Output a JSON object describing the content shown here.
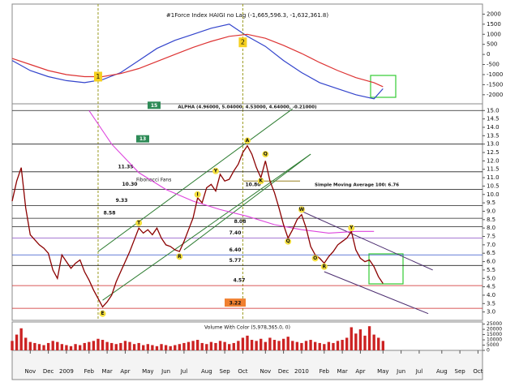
{
  "chart_data": [
    {
      "type": "line",
      "title": "#1Force Index HAIGI no Lag (-1,665,596.3, -1,632,361.8)",
      "xlim": [
        0,
        104
      ],
      "ylim": [
        -2450,
        2500
      ],
      "yticks": [
        2000,
        1500,
        1000,
        500,
        0,
        -500,
        -1000,
        -1500,
        -2000
      ],
      "series": [
        {
          "color": "#3344cc",
          "x": [
            0,
            4,
            8,
            12,
            16,
            20,
            24,
            28,
            32,
            36,
            40,
            44,
            48,
            52,
            56,
            60,
            64,
            68,
            72,
            76,
            80,
            82
          ],
          "values": [
            -300,
            -800,
            -1100,
            -1300,
            -1400,
            -1250,
            -900,
            -300,
            300,
            700,
            1000,
            1300,
            1500,
            900,
            400,
            -300,
            -900,
            -1400,
            -1700,
            -2000,
            -2200,
            -1700
          ]
        },
        {
          "color": "#dd3333",
          "x": [
            0,
            4,
            8,
            12,
            16,
            20,
            24,
            28,
            32,
            36,
            40,
            44,
            48,
            52,
            56,
            60,
            64,
            68,
            72,
            76,
            80,
            82
          ],
          "values": [
            -200,
            -500,
            -800,
            -1000,
            -1100,
            -1100,
            -950,
            -700,
            -350,
            0,
            350,
            650,
            900,
            1000,
            800,
            450,
            50,
            -400,
            -800,
            -1150,
            -1400,
            -1600
          ]
        }
      ],
      "annotations": [
        {
          "text": "1",
          "x": 19,
          "y": -1100
        },
        {
          "text": "2",
          "x": 51,
          "y": 600
        }
      ]
    },
    {
      "type": "line",
      "title": "ALPHA (4.96000, 5.04000, 4.53000, 4.64000, -0.21000)",
      "xlim": [
        0,
        104
      ],
      "ylim": [
        2.5,
        15.4
      ],
      "yticks": [
        {
          "value": 15,
          "label": "15.0"
        },
        14.5,
        {
          "value": 14,
          "label": "14.0"
        },
        13.5,
        {
          "value": 13,
          "label": "13.0"
        },
        12.5,
        {
          "value": 12,
          "label": "12.0"
        },
        11.5,
        {
          "value": 11,
          "label": "11.0"
        },
        10.5,
        {
          "value": 10,
          "label": "10.0"
        },
        9.5,
        {
          "value": 9,
          "label": "9.0"
        },
        8.5,
        {
          "value": 8,
          "label": "8.0"
        },
        7.5,
        {
          "value": 7,
          "label": "7.0"
        },
        6.5,
        {
          "value": 6,
          "label": "6.0"
        },
        5.5,
        {
          "value": 5,
          "label": "5.0"
        },
        4.5,
        {
          "value": 4,
          "label": "4.0"
        },
        3.5,
        {
          "value": 3,
          "label": "3.0"
        }
      ],
      "color": "#8b0000",
      "values": [
        9.6,
        10.8,
        11.6,
        9.2,
        7.6,
        7.3,
        7.0,
        6.8,
        6.5,
        5.5,
        5.0,
        6.4,
        6.0,
        5.6,
        5.9,
        6.1,
        5.4,
        4.9,
        4.3,
        3.8,
        3.3,
        3.6,
        4.0,
        4.8,
        5.4,
        6.0,
        6.6,
        7.3,
        8.0,
        7.7,
        7.9,
        7.6,
        8.0,
        7.4,
        7.0,
        6.9,
        6.7,
        6.6,
        7.2,
        7.9,
        8.6,
        9.8,
        9.5,
        10.4,
        10.6,
        10.2,
        11.2,
        10.8,
        10.9,
        11.4,
        11.8,
        12.5,
        12.9,
        12.4,
        11.6,
        11.0,
        12.0,
        10.8,
        10.1,
        9.2,
        8.2,
        7.4,
        7.9,
        8.5,
        8.8,
        8.0,
        6.9,
        6.4,
        6.2,
        5.9,
        6.3,
        6.6,
        7.0,
        7.2,
        7.4,
        7.8,
        6.7,
        6.2,
        6.0,
        6.1,
        5.7,
        5.1,
        4.7
      ],
      "levels": [
        {
          "value": 15,
          "label": "15",
          "color": "#222222"
        },
        {
          "value": 13,
          "label": "13",
          "color": "#222222"
        },
        {
          "value": 11.35,
          "label": "11.35",
          "color": "#222222"
        },
        {
          "value": 10.3,
          "label": "10.30",
          "color": "#333333"
        },
        {
          "value": 9.33,
          "label": "9.33",
          "color": "#222222"
        },
        {
          "value": 8.58,
          "label": "8.58",
          "color": "#222222"
        },
        {
          "value": 8.08,
          "label": "8.08",
          "color": "#222222"
        },
        {
          "value": 7.4,
          "label": "7.40",
          "color": "#9966cc"
        },
        {
          "value": 6.4,
          "label": "6.40",
          "color": "#3355cc"
        },
        {
          "value": 5.77,
          "label": "5.77",
          "color": "#222222"
        },
        {
          "value": 4.57,
          "label": "4.57",
          "color": "#cc2222"
        },
        {
          "value": 3.22,
          "label": "3.22",
          "color": "#cc2222"
        }
      ],
      "fan_label": {
        "value": 10.8,
        "label": "10.80"
      },
      "fan_title": "Fibonacci Fans",
      "sma": {
        "title": "Simple Moving Average 100: 6.76",
        "color": "#dd44dd",
        "x": [
          17,
          22,
          28,
          34,
          40,
          46,
          52,
          58,
          64,
          70,
          76,
          80
        ],
        "values": [
          15.0,
          13.0,
          11.3,
          10.3,
          9.6,
          9.1,
          8.7,
          8.2,
          7.9,
          7.7,
          7.8,
          7.8
        ]
      },
      "trendlines": [
        {
          "color": "#2e7d32",
          "x": [
            19,
            62
          ],
          "y": [
            6.6,
            15.1
          ]
        },
        {
          "color": "#2e7d32",
          "x": [
            20,
            66
          ],
          "y": [
            3.7,
            12.4
          ]
        },
        {
          "color": "#2e7d32",
          "x": [
            38,
            66
          ],
          "y": [
            6.7,
            12.4
          ]
        },
        {
          "color": "#4b2c6f",
          "x": [
            64,
            93
          ],
          "y": [
            9.0,
            5.5
          ]
        },
        {
          "color": "#4b2c6f",
          "x": [
            69,
            92
          ],
          "y": [
            5.4,
            2.9
          ]
        }
      ],
      "annotations": [
        {
          "text": "E",
          "x": 20,
          "y": 2.9
        },
        {
          "text": "T",
          "x": 28,
          "y": 8.3
        },
        {
          "text": "R",
          "x": 37,
          "y": 6.3
        },
        {
          "text": "I",
          "x": 41,
          "y": 10.0
        },
        {
          "text": "Y",
          "x": 45,
          "y": 11.4
        },
        {
          "text": "A",
          "x": 52,
          "y": 13.2
        },
        {
          "text": "K",
          "x": 55,
          "y": 10.8
        },
        {
          "text": "Q",
          "x": 56,
          "y": 12.4
        },
        {
          "text": "Q",
          "x": 61,
          "y": 7.2
        },
        {
          "text": "W",
          "x": 64,
          "y": 9.1
        },
        {
          "text": "O",
          "x": 67,
          "y": 6.2
        },
        {
          "text": "R",
          "x": 69,
          "y": 5.7
        },
        {
          "text": "Y",
          "x": 75,
          "y": 8.0
        }
      ]
    },
    {
      "type": "bar",
      "title": "Volume With Color (5,978,365.0, 0)",
      "xlim": [
        0,
        104
      ],
      "ylim": [
        0,
        27000
      ],
      "color": "#cc2222",
      "yticks": [
        25000,
        20000,
        15000,
        10000,
        5000,
        0
      ],
      "values": [
        9000,
        15000,
        21000,
        12000,
        8000,
        7000,
        6000,
        5000,
        7000,
        9000,
        8000,
        6000,
        5000,
        4000,
        6000,
        5000,
        7000,
        8000,
        9000,
        11000,
        10000,
        8000,
        7000,
        6000,
        7000,
        9000,
        8000,
        6000,
        7000,
        5000,
        6000,
        5000,
        4000,
        6000,
        5000,
        4000,
        5000,
        6000,
        7000,
        8000,
        9000,
        10000,
        7000,
        6000,
        8000,
        7000,
        9000,
        8000,
        6000,
        7000,
        9000,
        12000,
        14000,
        10000,
        9000,
        11000,
        8000,
        12000,
        10000,
        9000,
        11000,
        13000,
        9000,
        8000,
        7000,
        9000,
        10000,
        8000,
        7000,
        6000,
        8000,
        7000,
        9000,
        10000,
        12000,
        22000,
        16000,
        20000,
        14000,
        23000,
        15000,
        12000,
        9000
      ],
      "x_labels": [
        {
          "value": 4,
          "label": "Nov"
        },
        {
          "value": 8,
          "label": "Dec"
        },
        {
          "value": 12,
          "label": "2009"
        },
        {
          "value": 17,
          "label": "Feb"
        },
        {
          "value": 21,
          "label": "Mar"
        },
        {
          "value": 25,
          "label": "Apr"
        },
        {
          "value": 30,
          "label": "May"
        },
        {
          "value": 34,
          "label": "Jun"
        },
        {
          "value": 38,
          "label": "Jul"
        },
        {
          "value": 43,
          "label": "Aug"
        },
        {
          "value": 47,
          "label": "Sep"
        },
        {
          "value": 51,
          "label": "Oct"
        },
        {
          "value": 56,
          "label": "Nov"
        },
        {
          "value": 60,
          "label": "Dec"
        },
        {
          "value": 64,
          "label": "2010"
        },
        {
          "value": 69,
          "label": "Feb"
        },
        {
          "value": 73,
          "label": "Mar"
        },
        {
          "value": 77,
          "label": "Apr"
        },
        {
          "value": 82,
          "label": "May"
        },
        {
          "value": 86,
          "label": "Jun"
        },
        {
          "value": 90,
          "label": "Jul"
        },
        {
          "value": 95,
          "label": "Aug"
        },
        {
          "value": 99,
          "label": "Sep"
        },
        {
          "value": 103,
          "label": "Oct"
        }
      ]
    }
  ]
}
